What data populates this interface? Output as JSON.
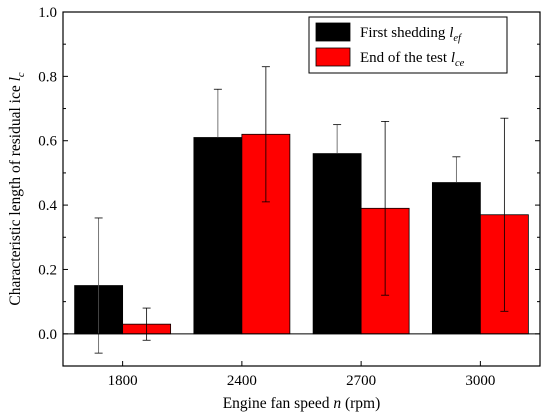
{
  "chart_data": {
    "type": "bar",
    "xlabel": {
      "prefix": "Engine fan speed ",
      "var": "n",
      "suffix": " (rpm)"
    },
    "ylabel": {
      "prefix": "Characteristic length of residual ice ",
      "var": "l",
      "sub": "c"
    },
    "categories": [
      "1800",
      "2400",
      "2700",
      "3000"
    ],
    "ylim": [
      -0.1,
      1.0
    ],
    "yticks": [
      0.0,
      0.2,
      0.4,
      0.6,
      0.8,
      1.0
    ],
    "ytick_labels": [
      "0.0",
      "0.2",
      "0.4",
      "0.6",
      "0.8",
      "1.0"
    ],
    "zero_line": true,
    "grid": false,
    "legend_position": "top-right",
    "series": [
      {
        "name": "First shedding l_ef",
        "label_text": "First shedding ",
        "label_var": "l",
        "label_sub": "ef",
        "color": "#000000",
        "values": [
          0.15,
          0.61,
          0.56,
          0.47
        ],
        "error_low": [
          -0.06,
          0.61,
          0.56,
          0.47
        ],
        "error_high": [
          0.36,
          0.76,
          0.65,
          0.55
        ]
      },
      {
        "name": "End of the test l_ce",
        "label_text": "End of the test ",
        "label_var": "l",
        "label_sub": "ce",
        "color": "#ff0000",
        "values": [
          0.03,
          0.62,
          0.39,
          0.37
        ],
        "error_low": [
          -0.02,
          0.41,
          0.12,
          0.07
        ],
        "error_high": [
          0.08,
          0.83,
          0.66,
          0.67
        ]
      }
    ]
  }
}
